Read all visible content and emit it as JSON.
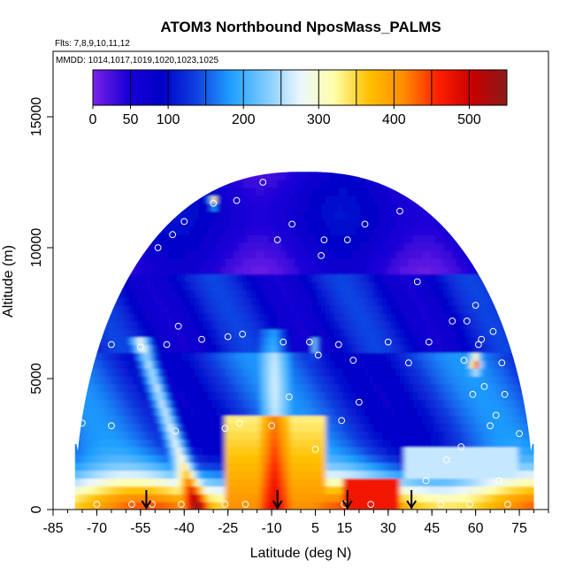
{
  "chart_data": {
    "type": "heatmap",
    "title": "ATOM3 Northbound NposMass_PALMS",
    "subtitle_flights": "Flts: 7,8,9,10,11,12",
    "subtitle_dates": "MMDD: 1014,1017,1019,1020,1023,1025",
    "xlabel": "Latitude (deg N)",
    "ylabel": "Altitude (m)",
    "xlim": [
      -85,
      85
    ],
    "ylim": [
      0,
      17500
    ],
    "xticks": [
      "-85",
      "-70",
      "-55",
      "-40",
      "-25",
      "-10",
      "5",
      "15",
      "30",
      "45",
      "60",
      "75"
    ],
    "xtick_values": [
      -85,
      -70,
      -55,
      -40,
      -25,
      -10,
      5,
      15,
      30,
      45,
      60,
      75
    ],
    "yticks": [
      "0",
      "5000",
      "10000",
      "15000"
    ],
    "ytick_values": [
      0,
      5000,
      10000,
      15000
    ],
    "colorbar": {
      "min": 0,
      "max": 550,
      "ticks": [
        "0",
        "50",
        "100",
        "200",
        "300",
        "400",
        "500"
      ],
      "tick_values": [
        0,
        50,
        100,
        200,
        300,
        400,
        500
      ],
      "band_edges": [
        0,
        50,
        100,
        150,
        200,
        250,
        300,
        350,
        400,
        450,
        500,
        550
      ],
      "colors": [
        "#7b22e8",
        "#0000c8",
        "#1e4fe6",
        "#1f9fff",
        "#b8e2ff",
        "#ffffd0",
        "#ffc000",
        "#ff8000",
        "#ff1a00",
        "#c00000",
        "#8b1010"
      ],
      "color_stops": [
        "#7b22e8",
        "#1a00d6",
        "#0000c8",
        "#1040e0",
        "#1f9fff",
        "#7ccaff",
        "#eaf6ff",
        "#ffffa8",
        "#ffc000",
        "#ff8c00",
        "#ff2000",
        "#c80000",
        "#8b1a1a"
      ]
    },
    "extent_lat_bounds": [
      -77.5,
      80
    ],
    "extent_max_alt": 12900,
    "arrow_latitudes": [
      -53,
      -8,
      16,
      38
    ],
    "sample_points": [
      [
        -77,
        5400
      ],
      [
        -75,
        3300
      ],
      [
        -74,
        7500
      ],
      [
        -73,
        9500
      ],
      [
        -71,
        6300
      ],
      [
        -70,
        200
      ],
      [
        -67,
        10500
      ],
      [
        -66,
        8500
      ],
      [
        -65,
        3200
      ],
      [
        -65,
        6300
      ],
      [
        -58,
        200
      ],
      [
        -55,
        6200
      ],
      [
        -51,
        200
      ],
      [
        -49,
        10000
      ],
      [
        -46,
        6300
      ],
      [
        -44,
        10500
      ],
      [
        -43,
        3000
      ],
      [
        -42,
        7000
      ],
      [
        -41,
        200
      ],
      [
        -40,
        11000
      ],
      [
        -34,
        6500
      ],
      [
        -30,
        11700
      ],
      [
        -26,
        200
      ],
      [
        -26,
        3100
      ],
      [
        -25,
        6600
      ],
      [
        -22,
        11800
      ],
      [
        -21,
        3300
      ],
      [
        -20,
        6700
      ],
      [
        -19,
        200
      ],
      [
        -13,
        12500
      ],
      [
        -10,
        3200
      ],
      [
        -8,
        10300
      ],
      [
        -6,
        6400
      ],
      [
        -4,
        4300
      ],
      [
        -3,
        10900
      ],
      [
        3,
        6400
      ],
      [
        5,
        2300
      ],
      [
        6,
        5900
      ],
      [
        7,
        9700
      ],
      [
        8,
        10300
      ],
      [
        13,
        6300
      ],
      [
        14,
        3400
      ],
      [
        15,
        200
      ],
      [
        16,
        10300
      ],
      [
        18,
        5700
      ],
      [
        20,
        4100
      ],
      [
        22,
        10900
      ],
      [
        24,
        200
      ],
      [
        30,
        6400
      ],
      [
        34,
        11400
      ],
      [
        37,
        5600
      ],
      [
        38,
        200
      ],
      [
        40,
        8700
      ],
      [
        43,
        1100
      ],
      [
        44,
        6400
      ],
      [
        48,
        200
      ],
      [
        50,
        1900
      ],
      [
        52,
        7200
      ],
      [
        55,
        2400
      ],
      [
        56,
        5700
      ],
      [
        57,
        7200
      ],
      [
        58,
        200
      ],
      [
        59,
        4400
      ],
      [
        60,
        7800
      ],
      [
        61,
        6300
      ],
      [
        62,
        6500
      ],
      [
        63,
        4700
      ],
      [
        65,
        3200
      ],
      [
        66,
        6800
      ],
      [
        67,
        3600
      ],
      [
        68,
        1100
      ],
      [
        69,
        5600
      ],
      [
        70,
        4400
      ],
      [
        71,
        200
      ],
      [
        72,
        6700
      ],
      [
        75,
        2900
      ]
    ]
  }
}
